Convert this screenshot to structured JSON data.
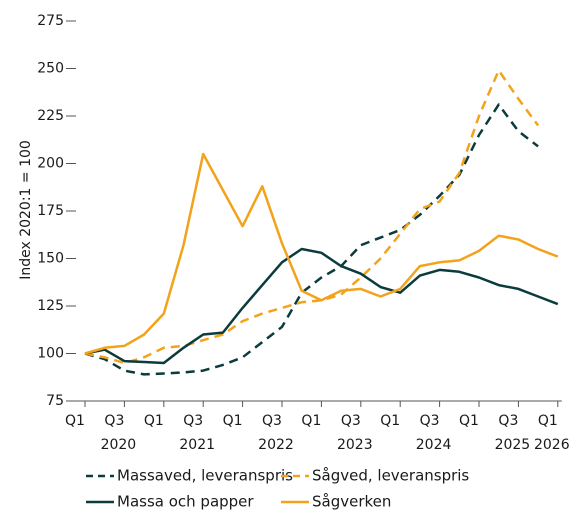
{
  "chart_data": {
    "type": "line",
    "y_label": "Index 2020:1 = 100",
    "categories": [
      "Q1",
      null,
      "Q3",
      null,
      "Q1",
      null,
      "Q3",
      null,
      "Q1",
      null,
      "Q3",
      null,
      "Q1",
      null,
      "Q3",
      null,
      "Q1",
      null,
      "Q3",
      null,
      "Q1",
      null,
      "Q3",
      null,
      "Q1"
    ],
    "year_labels": [
      "2020",
      "2021",
      "2022",
      "2023",
      "2024",
      "2025",
      "2026"
    ],
    "ylim": [
      75,
      275
    ],
    "yticks": [
      75,
      100,
      125,
      150,
      175,
      200,
      225,
      250,
      275
    ],
    "series": [
      {
        "name": "Massaved, leveranspris",
        "color": "#0b3b3c",
        "dashed": true,
        "values": [
          100,
          97,
          91,
          89,
          89.5,
          90,
          91,
          94,
          98,
          106,
          114,
          132,
          140,
          146,
          157,
          161,
          165,
          173,
          183,
          194,
          215,
          231,
          217,
          209,
          null
        ]
      },
      {
        "name": "Sågved, leveranspris",
        "color": "#f3a21c",
        "dashed": true,
        "values": [
          100,
          98,
          95,
          98,
          103,
          104,
          107,
          110,
          117,
          121,
          124,
          127,
          128,
          131,
          140,
          150,
          163,
          176,
          180,
          195,
          225,
          249,
          234,
          220,
          null
        ]
      },
      {
        "name": "Massa och papper",
        "color": "#0b3b3c",
        "dashed": false,
        "values": [
          100,
          102,
          96,
          95.5,
          95,
          103,
          110,
          111,
          124,
          136,
          148,
          155,
          153,
          146,
          142,
          135,
          132,
          141,
          144,
          143,
          140,
          136,
          134,
          130,
          126
        ]
      },
      {
        "name": "Sågverken",
        "color": "#f3a21c",
        "dashed": false,
        "values": [
          100,
          103,
          104,
          110,
          121,
          157,
          205,
          186,
          167,
          188,
          158,
          133,
          128,
          133,
          134,
          130,
          134,
          146,
          148,
          149,
          154,
          162,
          160,
          155,
          151
        ]
      }
    ]
  }
}
